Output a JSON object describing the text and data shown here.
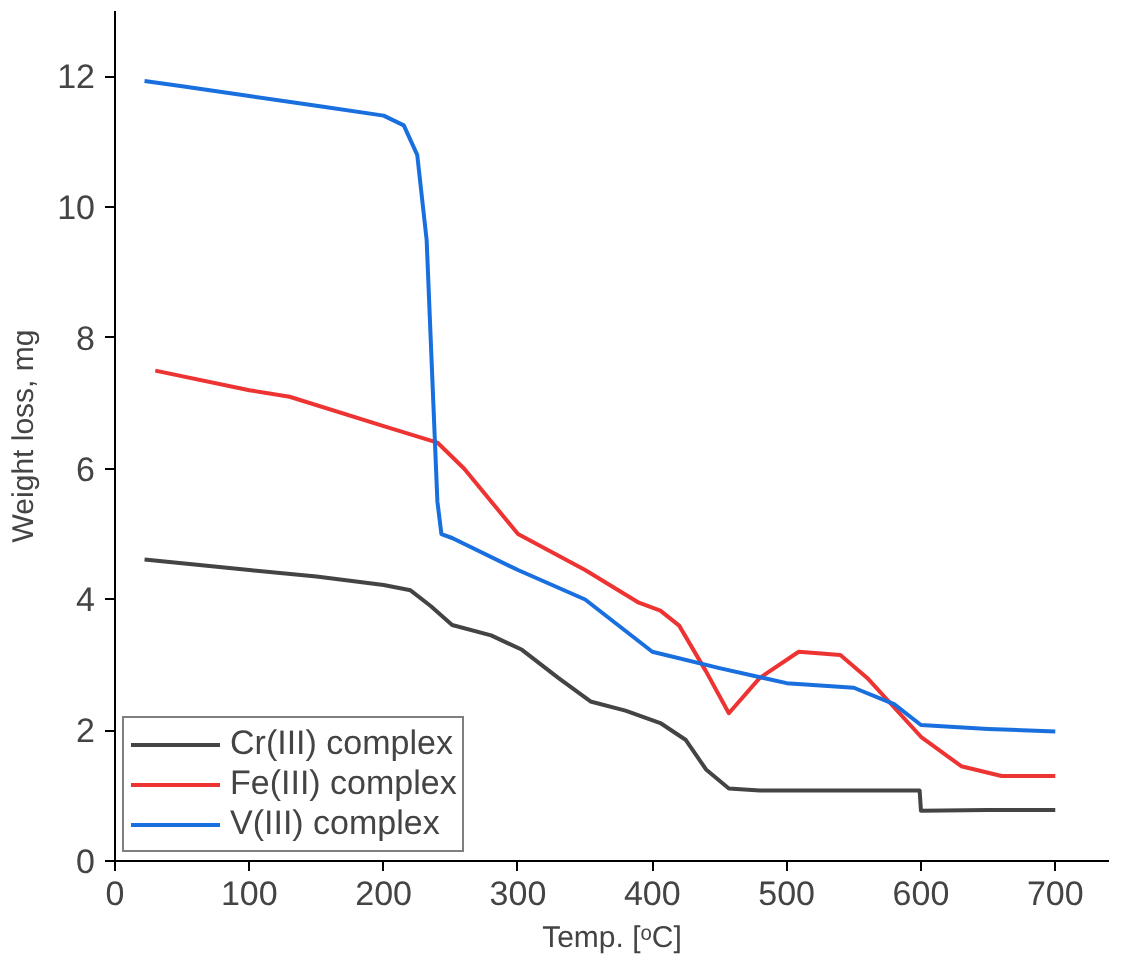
{
  "chart_data": {
    "type": "line",
    "xlabel": "Temp. [ᵒC]",
    "ylabel": "Weight loss, mg",
    "xlim": [
      0,
      740
    ],
    "ylim": [
      0,
      13
    ],
    "xticks": [
      0,
      100,
      200,
      300,
      400,
      500,
      600,
      700
    ],
    "yticks": [
      0,
      2,
      4,
      6,
      8,
      10,
      12
    ],
    "grid": false,
    "legend": "bottom left",
    "marker": "none",
    "line_style": "solid",
    "series": [
      {
        "name": "Cr(III) complex",
        "color": "#444444",
        "x": [
          22,
          100,
          150,
          200,
          220,
          235,
          251,
          280,
          303,
          330,
          354,
          380,
          406,
          425,
          440,
          457,
          480,
          550,
          599,
          600,
          650,
          700
        ],
        "values": [
          4.61,
          4.45,
          4.35,
          4.22,
          4.14,
          3.9,
          3.61,
          3.45,
          3.23,
          2.8,
          2.44,
          2.3,
          2.11,
          1.85,
          1.4,
          1.11,
          1.08,
          1.08,
          1.08,
          0.77,
          0.78,
          0.78
        ]
      },
      {
        "name": "Fe(III) complex",
        "color": "#ee3333",
        "x": [
          30,
          100,
          130,
          200,
          240,
          260,
          300,
          350,
          390,
          406,
          420,
          440,
          457,
          480,
          509,
          540,
          560,
          600,
          630,
          660,
          700
        ],
        "values": [
          7.5,
          7.2,
          7.1,
          6.65,
          6.4,
          6.0,
          5.0,
          4.45,
          3.95,
          3.83,
          3.6,
          2.9,
          2.26,
          2.8,
          3.2,
          3.15,
          2.8,
          1.9,
          1.45,
          1.3,
          1.3
        ]
      },
      {
        "name": "V(III) complex",
        "color": "#1a6fdf",
        "x": [
          22,
          50,
          100,
          150,
          200,
          215,
          225,
          232,
          237,
          240,
          243,
          251,
          300,
          350,
          400,
          450,
          500,
          550,
          580,
          600,
          650,
          700
        ],
        "values": [
          11.93,
          11.85,
          11.7,
          11.55,
          11.4,
          11.25,
          10.8,
          9.5,
          7.0,
          5.5,
          5.0,
          4.94,
          4.45,
          4.0,
          3.2,
          2.95,
          2.72,
          2.65,
          2.4,
          2.08,
          2.02,
          1.98
        ]
      }
    ]
  }
}
